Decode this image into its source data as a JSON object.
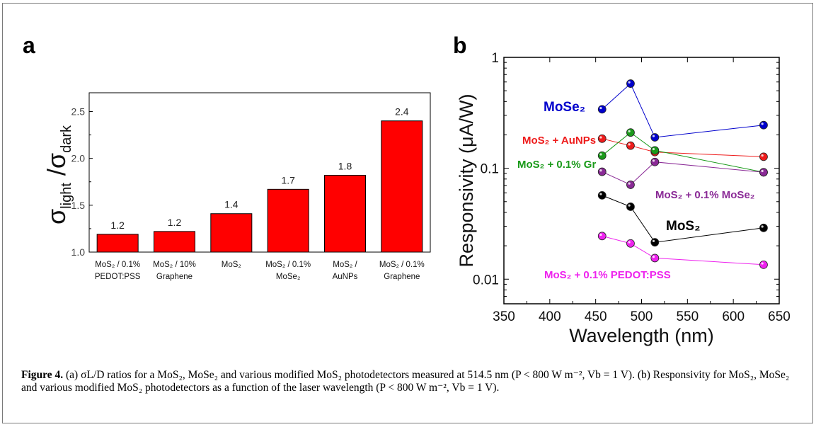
{
  "chart_data": [
    {
      "panel": "a",
      "type": "bar",
      "categories": [
        [
          "MoS₂ / 0.1%",
          "PEDOT:PSS"
        ],
        [
          "MoS₂ / 10%",
          "Graphene"
        ],
        [
          "MoS₂"
        ],
        [
          "MoS₂ / 0.1%",
          "MoSe₂"
        ],
        [
          "MoS₂ /",
          "AuNPs"
        ],
        [
          "MoS₂ / 0.1%",
          "Graphene"
        ]
      ],
      "values": [
        1.19,
        1.22,
        1.41,
        1.67,
        1.82,
        2.4
      ],
      "data_labels": [
        "1.2",
        "1.2",
        "1.4",
        "1.7",
        "1.8",
        "2.4"
      ],
      "ylabel_parts": {
        "sigma": "σ",
        "light": "light",
        "slash": " /",
        "dark": "dark"
      },
      "ylim": [
        1.0,
        2.7
      ],
      "yticks": [
        "1.0",
        "1.5",
        "2.0",
        "2.5"
      ],
      "bar_color": "#ff0000"
    },
    {
      "panel": "b",
      "type": "line",
      "xlabel": "Wavelength (nm)",
      "ylabel": "Responsivity (μA/W)",
      "xlim": [
        350,
        650
      ],
      "ylim_log": [
        0.006,
        1.0
      ],
      "yscale": "log",
      "xticks": [
        "350",
        "400",
        "450",
        "500",
        "550",
        "600",
        "650"
      ],
      "yticks": [
        {
          "value": 0.01,
          "label": "0.01"
        },
        {
          "value": 0.1,
          "label": "0.1"
        },
        {
          "value": 1,
          "label": "1"
        }
      ],
      "series": [
        {
          "name": "MoSe₂",
          "color": "#0000cc",
          "x": [
            457,
            488,
            514.5,
            633
          ],
          "y": [
            0.34,
            0.58,
            0.19,
            0.245
          ]
        },
        {
          "name": "MoS₂ + AuNPs",
          "color": "#ee1c1c",
          "x": [
            457,
            488,
            514.5,
            633
          ],
          "y": [
            0.185,
            0.16,
            0.14,
            0.127
          ]
        },
        {
          "name": "MoS₂ + 0.1% Gr",
          "color": "#1a9a1a",
          "x": [
            457,
            488,
            514.5,
            633
          ],
          "y": [
            0.13,
            0.21,
            0.145,
            0.092
          ]
        },
        {
          "name": "MoS₂ + 0.1% MoSe₂",
          "color": "#8a2a96",
          "x": [
            457,
            488,
            514.5,
            633
          ],
          "y": [
            0.093,
            0.071,
            0.114,
            0.092
          ]
        },
        {
          "name": "MoS₂",
          "color": "#000000",
          "x": [
            457,
            488,
            514.5,
            633
          ],
          "y": [
            0.057,
            0.045,
            0.0215,
            0.029
          ]
        },
        {
          "name": "MoS₂ + 0.1% PEDOT:PSS",
          "color": "#ee22ee",
          "x": [
            457,
            488,
            514.5,
            633
          ],
          "y": [
            0.0245,
            0.021,
            0.0155,
            0.0135
          ]
        }
      ]
    }
  ],
  "panel_labels": {
    "a": "a",
    "b": "b"
  },
  "caption": {
    "title": "Figure 4.",
    "text": " (a) σL/D ratios for a MoS₂, MoSe₂ and various modified MoS₂ photodetectors measured at 514.5 nm (P < 800 W m⁻², Vb = 1 V). (b) Responsivity for MoS₂, MoSe₂ and various modified MoS₂ photodetectors as a function of the laser wavelength (P < 800 W m⁻², Vb = 1 V)."
  }
}
